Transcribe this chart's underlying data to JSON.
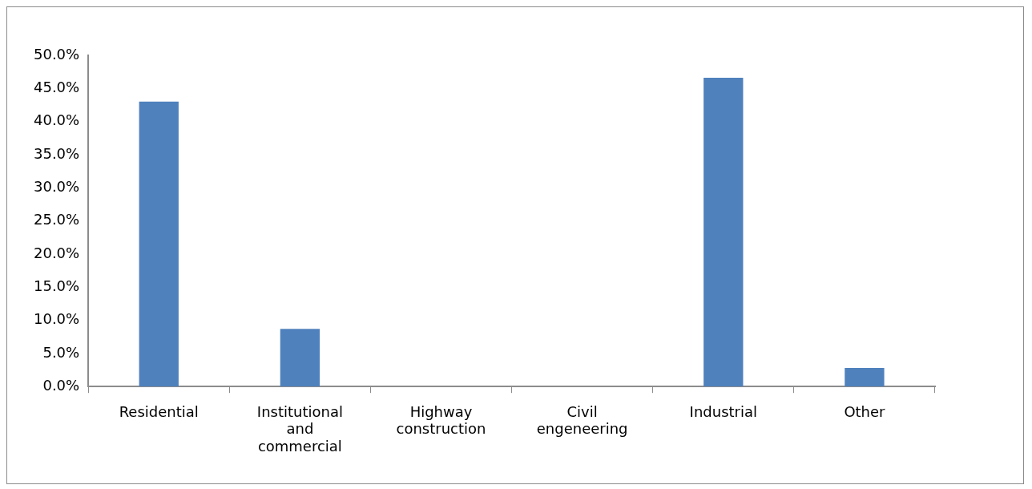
{
  "chart_data": {
    "type": "bar",
    "categories": [
      "Residential",
      "Institutional and commercial",
      "Highway construction",
      "Civil engeneering",
      "Industrial",
      "Other"
    ],
    "values": [
      43.0,
      8.7,
      0,
      0,
      46.6,
      2.8
    ],
    "color": "#4f81bd",
    "ylim": [
      0,
      50
    ],
    "yticks": [
      {
        "value": 0,
        "label": "0.0%"
      },
      {
        "value": 5,
        "label": "5.0%"
      },
      {
        "value": 10,
        "label": "10.0%"
      },
      {
        "value": 15,
        "label": "15.0%"
      },
      {
        "value": 20,
        "label": "20.0%"
      },
      {
        "value": 25,
        "label": "25.0%"
      },
      {
        "value": 30,
        "label": "30.0%"
      },
      {
        "value": 35,
        "label": "35.0%"
      },
      {
        "value": 40,
        "label": "40.0%"
      },
      {
        "value": 45,
        "label": "45.0%"
      },
      {
        "value": 50,
        "label": "50.0%"
      }
    ],
    "grid": false,
    "legend": false
  }
}
